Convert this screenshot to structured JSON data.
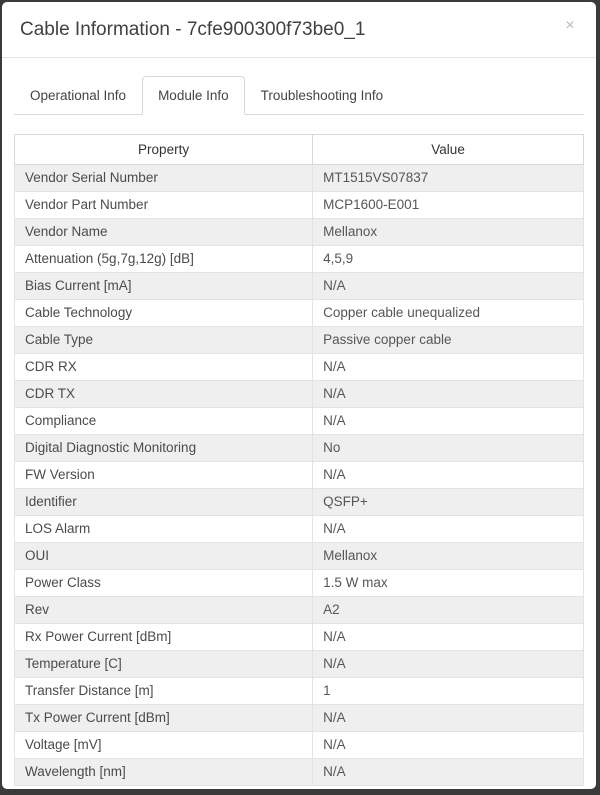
{
  "modal": {
    "title": "Cable Information - 7cfe900300f73be0_1",
    "close_label": "×"
  },
  "tabs": [
    {
      "id": "operational-info",
      "label": "Operational Info",
      "active": false
    },
    {
      "id": "module-info",
      "label": "Module Info",
      "active": true
    },
    {
      "id": "troubleshooting-info",
      "label": "Troubleshooting Info",
      "active": false
    }
  ],
  "table": {
    "headers": {
      "property": "Property",
      "value": "Value"
    },
    "rows": [
      {
        "property": "Vendor Serial Number",
        "value": "MT1515VS07837"
      },
      {
        "property": "Vendor Part Number",
        "value": "MCP1600-E001"
      },
      {
        "property": "Vendor Name",
        "value": "Mellanox"
      },
      {
        "property": "Attenuation (5g,7g,12g) [dB]",
        "value": "4,5,9"
      },
      {
        "property": "Bias Current [mA]",
        "value": "N/A"
      },
      {
        "property": "Cable Technology",
        "value": "Copper cable unequalized"
      },
      {
        "property": "Cable Type",
        "value": "Passive copper cable"
      },
      {
        "property": "CDR RX",
        "value": "N/A"
      },
      {
        "property": "CDR TX",
        "value": "N/A"
      },
      {
        "property": "Compliance",
        "value": "N/A"
      },
      {
        "property": "Digital Diagnostic Monitoring",
        "value": "No"
      },
      {
        "property": "FW Version",
        "value": "N/A"
      },
      {
        "property": "Identifier",
        "value": "QSFP+"
      },
      {
        "property": "LOS Alarm",
        "value": "N/A"
      },
      {
        "property": "OUI",
        "value": "Mellanox"
      },
      {
        "property": "Power Class",
        "value": "1.5 W max"
      },
      {
        "property": "Rev",
        "value": "A2"
      },
      {
        "property": "Rx Power Current [dBm]",
        "value": "N/A"
      },
      {
        "property": "Temperature [C]",
        "value": "N/A"
      },
      {
        "property": "Transfer Distance [m]",
        "value": "1"
      },
      {
        "property": "Tx Power Current [dBm]",
        "value": "N/A"
      },
      {
        "property": "Voltage [mV]",
        "value": "N/A"
      },
      {
        "property": "Wavelength [nm]",
        "value": "N/A"
      }
    ]
  },
  "colors": {
    "backdrop": "#3a3a3a",
    "modal_bg": "#ffffff",
    "row_stripe": "#efefef",
    "table_border": "#d9d9d9",
    "title_text": "#414141"
  }
}
